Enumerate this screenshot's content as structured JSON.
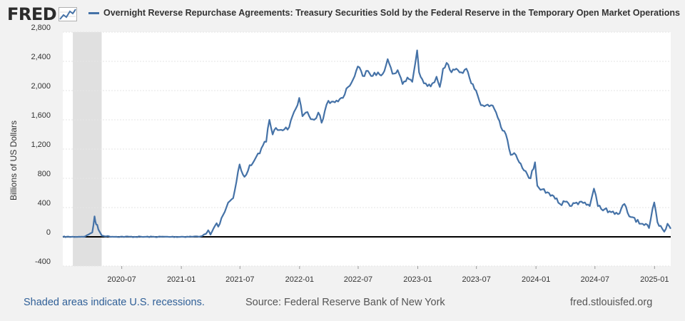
{
  "header": {
    "logo_text": "FRED",
    "title": "Overnight Reverse Repurchase Agreements: Treasury Securities Sold by the Federal Reserve in the Temporary Open Market Operations"
  },
  "footer": {
    "recession_note": "Shaded areas indicate U.S. recessions.",
    "source": "Source: Federal Reserve Bank of New York",
    "site": "fred.stlouisfed.org"
  },
  "colors": {
    "series": "#4572a7",
    "plot_background": "#ffffff",
    "page_background": "#f2f2f2",
    "recession_shade": "#e0e0e0",
    "zero_line": "#000000",
    "recession_note_text": "#2f5f97",
    "logo_text": "#2b2b2b"
  },
  "chart_data": {
    "type": "line",
    "title": "Overnight Reverse Repurchase Agreements: Treasury Securities Sold by the Federal Reserve in the Temporary Open Market Operations",
    "xlabel": "",
    "ylabel": "Billions of US Dollars",
    "ylim": [
      -400,
      2800
    ],
    "xlim": [
      "2020-01-01",
      "2025-02-20"
    ],
    "yticks": [
      -400,
      0,
      400,
      800,
      1200,
      1600,
      2000,
      2400,
      2800
    ],
    "ytick_labels": [
      "-400",
      "0",
      "400",
      "800",
      "1,200",
      "1,600",
      "2,000",
      "2,400",
      "2,800"
    ],
    "xticks": [
      "2020-07-01",
      "2021-01-01",
      "2021-07-01",
      "2022-01-01",
      "2022-07-01",
      "2023-01-01",
      "2023-07-01",
      "2024-01-01",
      "2024-07-01",
      "2025-01-01"
    ],
    "xtick_labels": [
      "2020-07",
      "2021-01",
      "2021-07",
      "2022-01",
      "2022-07",
      "2023-01",
      "2023-07",
      "2024-01",
      "2024-07",
      "2025-01"
    ],
    "grid": true,
    "recessions": [
      {
        "start": "2020-02-01",
        "end": "2020-04-30"
      }
    ],
    "series": [
      {
        "values": [
          [
            "2020-01-01",
            0
          ],
          [
            "2020-02-10",
            0
          ],
          [
            "2020-03-10",
            5
          ],
          [
            "2020-03-20",
            30
          ],
          [
            "2020-04-01",
            60
          ],
          [
            "2020-04-08",
            280
          ],
          [
            "2020-04-13",
            170
          ],
          [
            "2020-04-20",
            100
          ],
          [
            "2020-05-01",
            15
          ],
          [
            "2020-06-01",
            2
          ],
          [
            "2020-09-01",
            0
          ],
          [
            "2020-12-01",
            0
          ],
          [
            "2021-02-01",
            2
          ],
          [
            "2021-03-01",
            5
          ],
          [
            "2021-03-18",
            40
          ],
          [
            "2021-03-25",
            90
          ],
          [
            "2021-04-01",
            30
          ],
          [
            "2021-04-15",
            150
          ],
          [
            "2021-04-30",
            180
          ],
          [
            "2021-05-10",
            300
          ],
          [
            "2021-05-20",
            400
          ],
          [
            "2021-05-31",
            490
          ],
          [
            "2021-06-10",
            530
          ],
          [
            "2021-06-20",
            750
          ],
          [
            "2021-06-30",
            990
          ],
          [
            "2021-07-15",
            820
          ],
          [
            "2021-07-31",
            980
          ],
          [
            "2021-08-15",
            1050
          ],
          [
            "2021-08-31",
            1140
          ],
          [
            "2021-09-10",
            1250
          ],
          [
            "2021-09-20",
            1300
          ],
          [
            "2021-09-30",
            1600
          ],
          [
            "2021-10-10",
            1400
          ],
          [
            "2021-10-20",
            1490
          ],
          [
            "2021-10-31",
            1460
          ],
          [
            "2021-11-15",
            1470
          ],
          [
            "2021-11-30",
            1500
          ],
          [
            "2021-12-10",
            1650
          ],
          [
            "2021-12-20",
            1750
          ],
          [
            "2021-12-31",
            1900
          ],
          [
            "2022-01-10",
            1650
          ],
          [
            "2022-01-20",
            1700
          ],
          [
            "2022-01-31",
            1650
          ],
          [
            "2022-02-15",
            1600
          ],
          [
            "2022-02-28",
            1700
          ],
          [
            "2022-03-10",
            1560
          ],
          [
            "2022-03-20",
            1720
          ],
          [
            "2022-03-31",
            1860
          ],
          [
            "2022-04-15",
            1850
          ],
          [
            "2022-04-30",
            1850
          ],
          [
            "2022-05-15",
            1900
          ],
          [
            "2022-05-31",
            2050
          ],
          [
            "2022-06-15",
            2150
          ],
          [
            "2022-06-30",
            2330
          ],
          [
            "2022-07-15",
            2200
          ],
          [
            "2022-07-31",
            2270
          ],
          [
            "2022-08-15",
            2200
          ],
          [
            "2022-08-31",
            2250
          ],
          [
            "2022-09-15",
            2230
          ],
          [
            "2022-09-30",
            2430
          ],
          [
            "2022-10-15",
            2230
          ],
          [
            "2022-10-31",
            2280
          ],
          [
            "2022-11-15",
            2090
          ],
          [
            "2022-11-30",
            2180
          ],
          [
            "2022-12-15",
            2120
          ],
          [
            "2022-12-30",
            2550
          ],
          [
            "2023-01-05",
            2250
          ],
          [
            "2023-01-20",
            2100
          ],
          [
            "2023-01-31",
            2060
          ],
          [
            "2023-02-15",
            2100
          ],
          [
            "2023-02-28",
            2190
          ],
          [
            "2023-03-10",
            2050
          ],
          [
            "2023-03-20",
            2300
          ],
          [
            "2023-03-31",
            2380
          ],
          [
            "2023-04-15",
            2250
          ],
          [
            "2023-04-30",
            2300
          ],
          [
            "2023-05-15",
            2250
          ],
          [
            "2023-05-31",
            2300
          ],
          [
            "2023-06-15",
            2100
          ],
          [
            "2023-06-30",
            2000
          ],
          [
            "2023-07-15",
            1800
          ],
          [
            "2023-07-31",
            1800
          ],
          [
            "2023-08-15",
            1800
          ],
          [
            "2023-08-31",
            1700
          ],
          [
            "2023-09-15",
            1500
          ],
          [
            "2023-09-30",
            1400
          ],
          [
            "2023-10-15",
            1120
          ],
          [
            "2023-10-31",
            1120
          ],
          [
            "2023-11-15",
            1000
          ],
          [
            "2023-11-30",
            900
          ],
          [
            "2023-12-15",
            800
          ],
          [
            "2023-12-29",
            1020
          ],
          [
            "2024-01-05",
            700
          ],
          [
            "2024-01-20",
            650
          ],
          [
            "2024-01-31",
            600
          ],
          [
            "2024-02-15",
            560
          ],
          [
            "2024-02-29",
            520
          ],
          [
            "2024-03-15",
            450
          ],
          [
            "2024-03-31",
            480
          ],
          [
            "2024-04-15",
            420
          ],
          [
            "2024-04-30",
            460
          ],
          [
            "2024-05-15",
            480
          ],
          [
            "2024-05-31",
            470
          ],
          [
            "2024-06-15",
            420
          ],
          [
            "2024-06-28",
            660
          ],
          [
            "2024-07-10",
            420
          ],
          [
            "2024-07-31",
            380
          ],
          [
            "2024-08-15",
            350
          ],
          [
            "2024-08-31",
            310
          ],
          [
            "2024-09-15",
            320
          ],
          [
            "2024-09-30",
            450
          ],
          [
            "2024-10-15",
            280
          ],
          [
            "2024-10-31",
            260
          ],
          [
            "2024-11-15",
            180
          ],
          [
            "2024-11-30",
            160
          ],
          [
            "2024-12-15",
            120
          ],
          [
            "2024-12-31",
            470
          ],
          [
            "2025-01-10",
            200
          ],
          [
            "2025-01-20",
            150
          ],
          [
            "2025-01-31",
            70
          ],
          [
            "2025-02-10",
            180
          ],
          [
            "2025-02-20",
            110
          ]
        ]
      }
    ]
  }
}
